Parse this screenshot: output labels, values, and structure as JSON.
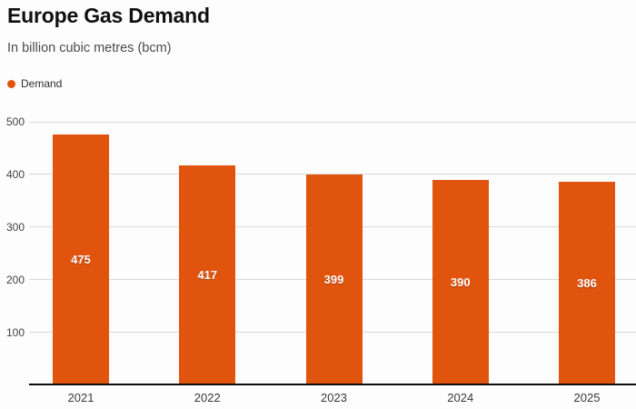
{
  "header": {
    "title": "Europe Gas Demand",
    "subtitle": "In billion cubic metres (bcm)"
  },
  "chart_data": {
    "type": "bar",
    "title": "Europe Gas Demand",
    "subtitle": "In billion cubic metres (bcm)",
    "categories": [
      "2021",
      "2022",
      "2023",
      "2024",
      "2025"
    ],
    "series": [
      {
        "name": "Demand",
        "values": [
          475,
          417,
          399,
          390,
          386
        ],
        "color": "#e0540e"
      }
    ],
    "bar_value_labels": [
      "475",
      "417",
      "399",
      "390",
      "386"
    ],
    "xlabel": "",
    "ylabel": "",
    "ylim": [
      0,
      500
    ],
    "yticks": [
      100,
      200,
      300,
      400,
      500
    ],
    "grid": true,
    "legend_position": "top-left"
  },
  "colors": {
    "accent": "#e0540e",
    "gridline": "#d9d9d9",
    "axis": "#0d0d0d",
    "title_text": "#101010",
    "subtitle_text": "#4a4a4a",
    "tick_text": "#404040",
    "bar_label_text": "#ffffff",
    "background": "#fdfdfd"
  }
}
